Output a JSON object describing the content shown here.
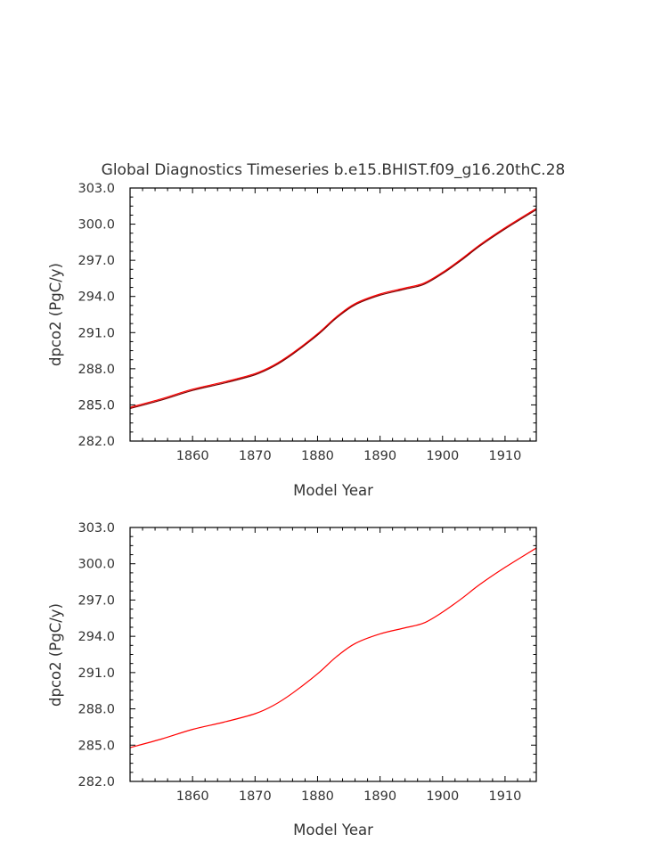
{
  "chart_data": [
    {
      "type": "line",
      "title": "Global Diagnostics Timeseries b.e15.BHIST.f09_g16.20thC.28",
      "xlabel": "Model Year",
      "ylabel": "dpco2 (PgC/y)",
      "xlim": [
        1850,
        1915
      ],
      "ylim": [
        282.0,
        303.0
      ],
      "x_major_ticks": [
        1860,
        1870,
        1880,
        1890,
        1900,
        1910
      ],
      "x_tick_labels": [
        "1860",
        "1870",
        "1880",
        "1890",
        "1900",
        "1910"
      ],
      "y_major_ticks": [
        282.0,
        285.0,
        288.0,
        291.0,
        294.0,
        297.0,
        300.0,
        303.0
      ],
      "y_tick_labels": [
        "282.0",
        "285.0",
        "288.0",
        "291.0",
        "294.0",
        "297.0",
        "300.0",
        "303.0"
      ],
      "grid": false,
      "series": [
        {
          "color": "#ff0000",
          "x": [
            1850,
            1855,
            1860,
            1865,
            1870,
            1873,
            1876,
            1880,
            1883,
            1886,
            1890,
            1894,
            1897,
            1900,
            1903,
            1906,
            1910,
            1915
          ],
          "values": [
            284.8,
            285.5,
            286.3,
            286.9,
            287.6,
            288.3,
            289.3,
            290.9,
            292.3,
            293.4,
            294.2,
            294.7,
            295.1,
            296.0,
            297.1,
            298.3,
            299.7,
            301.3
          ]
        },
        {
          "color": "#7f0000",
          "x": [
            1850,
            1855,
            1860,
            1865,
            1870,
            1873,
            1876,
            1880,
            1883,
            1886,
            1890,
            1894,
            1897,
            1900,
            1903,
            1906,
            1910,
            1915
          ],
          "values": [
            284.7,
            285.4,
            286.2,
            286.8,
            287.5,
            288.2,
            289.2,
            290.8,
            292.2,
            293.3,
            294.1,
            294.6,
            295.0,
            295.9,
            297.0,
            298.2,
            299.6,
            301.2
          ]
        }
      ]
    },
    {
      "type": "line",
      "title": "",
      "xlabel": "Model Year",
      "ylabel": "dpco2 (PgC/y)",
      "xlim": [
        1850,
        1915
      ],
      "ylim": [
        282.0,
        303.0
      ],
      "x_major_ticks": [
        1860,
        1870,
        1880,
        1890,
        1900,
        1910
      ],
      "x_tick_labels": [
        "1860",
        "1870",
        "1880",
        "1890",
        "1900",
        "1910"
      ],
      "y_major_ticks": [
        282.0,
        285.0,
        288.0,
        291.0,
        294.0,
        297.0,
        300.0,
        303.0
      ],
      "y_tick_labels": [
        "282.0",
        "285.0",
        "288.0",
        "291.0",
        "294.0",
        "297.0",
        "300.0",
        "303.0"
      ],
      "grid": false,
      "series": [
        {
          "color": "#ff0000",
          "x": [
            1850,
            1855,
            1860,
            1865,
            1870,
            1873,
            1876,
            1880,
            1883,
            1886,
            1890,
            1894,
            1897,
            1900,
            1903,
            1906,
            1910,
            1915
          ],
          "values": [
            284.8,
            285.5,
            286.3,
            286.9,
            287.6,
            288.3,
            289.3,
            290.9,
            292.3,
            293.4,
            294.2,
            294.7,
            295.1,
            296.0,
            297.1,
            298.3,
            299.7,
            301.3
          ]
        }
      ]
    }
  ]
}
